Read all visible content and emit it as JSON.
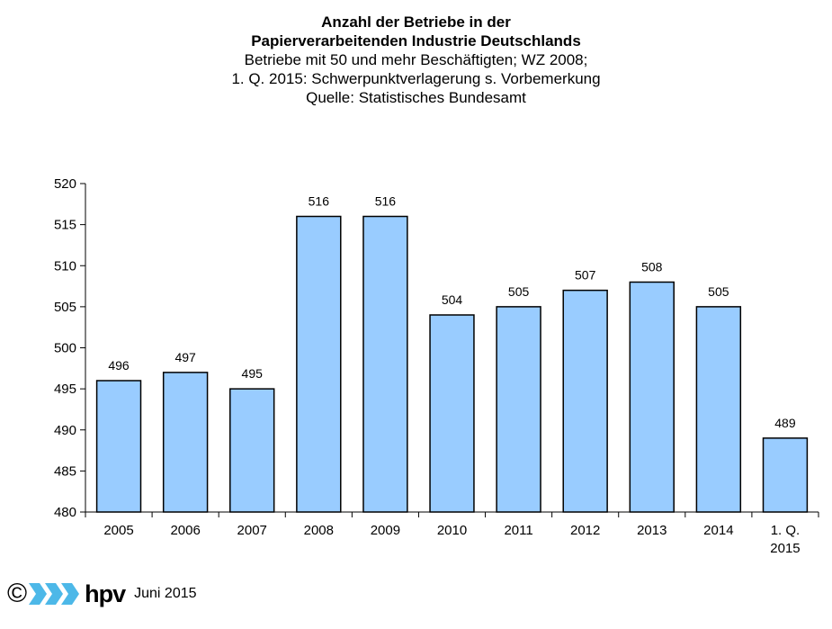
{
  "chart_data": {
    "type": "bar",
    "title": "Anzahl der Betriebe in der",
    "title_line2": "Papierverarbeitenden Industrie Deutschlands",
    "subtitle_line1": "Betriebe mit 50 und mehr Beschäftigten; WZ 2008;",
    "subtitle_line2": "1. Q. 2015: Schwerpunktverlagerung s. Vorbemerkung",
    "subtitle_line3": "Quelle: Statistisches Bundesamt",
    "categories": [
      "2005",
      "2006",
      "2007",
      "2008",
      "2009",
      "2010",
      "2011",
      "2012",
      "2013",
      "2014",
      "1. Q.\n2015"
    ],
    "values": [
      496,
      497,
      495,
      516,
      516,
      504,
      505,
      507,
      508,
      505,
      489
    ],
    "ylim": [
      480,
      520
    ],
    "yticks": [
      480,
      485,
      490,
      495,
      500,
      505,
      510,
      515,
      520
    ],
    "grid": false,
    "bar_color": "#99ccff",
    "xlabel": "",
    "ylabel": ""
  },
  "footer": {
    "copyright_symbol": "©",
    "brand": "hpv",
    "date": "Juni 2015",
    "logo_color": "#4db8e8"
  }
}
